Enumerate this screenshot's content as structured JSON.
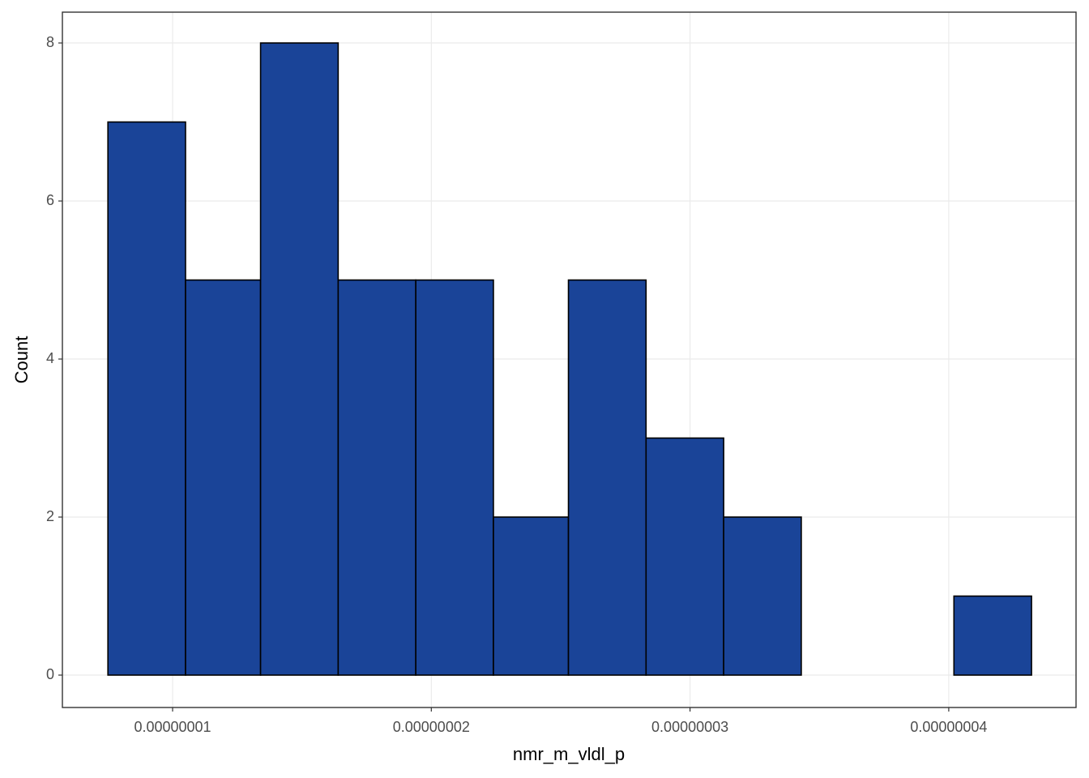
{
  "chart_data": {
    "type": "histogram",
    "x_label": "nmr_m_vldl_p",
    "y_label": "Count",
    "bins": [
      7.5e-09,
      1.05e-08,
      1.34e-08,
      1.64e-08,
      1.94e-08,
      2.24e-08,
      2.53e-08,
      2.83e-08,
      3.13e-08,
      3.43e-08,
      3.72e-08,
      4.02e-08,
      4.32e-08
    ],
    "values": [
      7,
      5,
      8,
      5,
      5,
      2,
      5,
      3,
      2,
      0,
      0,
      1
    ],
    "color": "#1a4498",
    "edge_color": "#000000",
    "xlim": [
      5.74e-09,
      4.492e-08
    ],
    "ylim": [
      -0.41,
      8.39
    ],
    "xticks": [
      {
        "value": 1e-08,
        "label": "0.00000001"
      },
      {
        "value": 2e-08,
        "label": "0.00000002"
      },
      {
        "value": 3e-08,
        "label": "0.00000003"
      },
      {
        "value": 4e-08,
        "label": "0.00000004"
      }
    ],
    "yticks": [
      0,
      2,
      4,
      6,
      8
    ],
    "grid": true
  }
}
